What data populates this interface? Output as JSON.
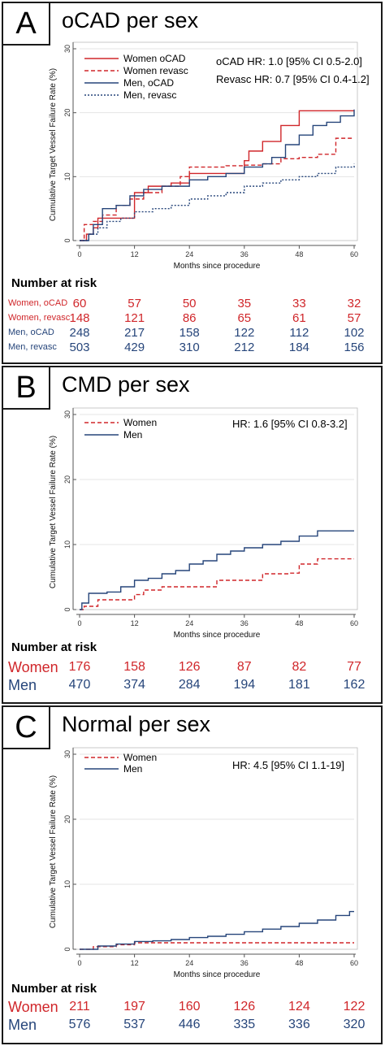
{
  "colors": {
    "women": "#d0262a",
    "men": "#26457a",
    "grid": "#e4e4e4",
    "axis": "#555555"
  },
  "chart_data": [
    {
      "type": "line",
      "panel": "A",
      "title": "oCAD per sex",
      "xlabel": "Months since procedure",
      "ylabel": "Cumulative Target Vessel Failure Rate (%)",
      "xlim": [
        0,
        60
      ],
      "ylim": [
        0,
        30
      ],
      "xticks": [
        "0",
        "12",
        "24",
        "36",
        "48",
        "60"
      ],
      "yticks": [
        "0",
        "10",
        "20",
        "30"
      ],
      "hr_lines": [
        "oCAD HR: 1.0 [95% CI 0.5-2.0]",
        "Revasc HR: 0.7 [95% CI 0.4-1.2]"
      ],
      "series": [
        {
          "name": "Women oCAD",
          "color": "#d0262a",
          "dash": "solid",
          "x": [
            0,
            1.5,
            3,
            4,
            6,
            10,
            12,
            15,
            20,
            24,
            30,
            36,
            37,
            40,
            44,
            48,
            60
          ],
          "y": [
            0,
            1,
            2,
            3.5,
            3.5,
            3.5,
            7.5,
            8.5,
            9,
            10.5,
            10.5,
            12.5,
            14,
            15.5,
            18,
            20.3,
            20.3
          ]
        },
        {
          "name": "Women revasc",
          "color": "#d0262a",
          "dash": "dash",
          "x": [
            0,
            1,
            3,
            5,
            8,
            11,
            14,
            18,
            22,
            24,
            28,
            32,
            36,
            40,
            44,
            48,
            52,
            56,
            60
          ],
          "y": [
            0,
            2.5,
            3,
            4,
            5.5,
            6.5,
            7.5,
            8.5,
            10,
            11.5,
            11.5,
            11.7,
            11.8,
            12,
            12.8,
            13,
            13.5,
            16,
            16
          ]
        },
        {
          "name": "Men, oCAD",
          "color": "#26457a",
          "dash": "solid",
          "x": [
            0,
            2,
            3,
            5,
            8,
            11,
            14,
            18,
            24,
            28,
            32,
            36,
            40,
            42,
            45,
            48,
            51,
            54,
            57,
            60
          ],
          "y": [
            0,
            1,
            2.5,
            5,
            5.5,
            7,
            8,
            8.5,
            9.5,
            10,
            10.5,
            11.5,
            12,
            13,
            15,
            16.5,
            18,
            18.5,
            19.5,
            20.5
          ]
        },
        {
          "name": "Men, revasc",
          "color": "#26457a",
          "dash": "dot",
          "x": [
            0,
            2,
            4,
            6,
            9,
            12,
            16,
            20,
            24,
            28,
            32,
            36,
            40,
            44,
            48,
            52,
            56,
            60
          ],
          "y": [
            0,
            1,
            2,
            3,
            3.5,
            4.5,
            5,
            5.5,
            6.5,
            7,
            7.5,
            8.5,
            9,
            9.5,
            10,
            10.5,
            11.5,
            12
          ]
        }
      ]
    },
    {
      "type": "line",
      "panel": "B",
      "title": "CMD per sex",
      "xlabel": "Months since procedure",
      "ylabel": "Cumulative Target Vessel Failure Rate (%)",
      "xlim": [
        0,
        60
      ],
      "ylim": [
        0,
        30
      ],
      "xticks": [
        "0",
        "12",
        "24",
        "36",
        "48",
        "60"
      ],
      "yticks": [
        "0",
        "10",
        "20",
        "30"
      ],
      "hr_lines": [
        "HR: 1.6 [95% CI 0.8-3.2]"
      ],
      "series": [
        {
          "name": "Women",
          "color": "#d0262a",
          "dash": "dash",
          "x": [
            0,
            1,
            4,
            12,
            14,
            18,
            24,
            30,
            36,
            40,
            44,
            46,
            48,
            52,
            60
          ],
          "y": [
            0,
            0.5,
            1.5,
            2.3,
            3,
            3.5,
            3.5,
            4.5,
            4.5,
            5.5,
            5.5,
            5.6,
            7,
            7.8,
            7.8
          ]
        },
        {
          "name": "Men",
          "color": "#26457a",
          "dash": "solid",
          "x": [
            0,
            0.5,
            2,
            6,
            9,
            12,
            15,
            18,
            21,
            24,
            27,
            30,
            33,
            36,
            40,
            44,
            48,
            52,
            60
          ],
          "y": [
            0,
            1,
            2.5,
            2.7,
            3.5,
            4.5,
            4.8,
            5.5,
            6,
            7,
            7.5,
            8.5,
            9,
            9.5,
            10,
            10.5,
            11.3,
            12.1,
            12.1
          ]
        }
      ]
    },
    {
      "type": "line",
      "panel": "C",
      "title": "Normal per sex",
      "xlabel": "Months since procedure",
      "ylabel": "Cumulative Target Vessel Failure Rate (%)",
      "xlim": [
        0,
        60
      ],
      "ylim": [
        0,
        30
      ],
      "xticks": [
        "0",
        "12",
        "24",
        "36",
        "48",
        "60"
      ],
      "yticks": [
        "0",
        "10",
        "20",
        "30"
      ],
      "hr_lines": [
        "HR: 4.5 [95% CI 1.1-19]"
      ],
      "series": [
        {
          "name": "Women",
          "color": "#d0262a",
          "dash": "dash",
          "x": [
            0,
            3,
            8,
            12,
            60
          ],
          "y": [
            0,
            0.4,
            0.7,
            1,
            1
          ]
        },
        {
          "name": "Men",
          "color": "#26457a",
          "dash": "solid",
          "x": [
            0,
            4,
            8,
            12,
            16,
            20,
            24,
            28,
            32,
            36,
            40,
            44,
            48,
            52,
            56,
            59,
            60
          ],
          "y": [
            0,
            0.5,
            0.8,
            1.2,
            1.3,
            1.5,
            1.8,
            2,
            2.3,
            2.7,
            3.1,
            3.5,
            4,
            4.5,
            5.2,
            5.8,
            5.8
          ]
        }
      ]
    }
  ],
  "risk_tables": [
    {
      "heading": "Number at risk",
      "rows": [
        {
          "label": "Women, oCAD",
          "color": "#d0262a",
          "values": [
            "60",
            "57",
            "50",
            "35",
            "33",
            "32"
          ]
        },
        {
          "label": "Women, revasc",
          "color": "#d0262a",
          "values": [
            "148",
            "121",
            "86",
            "65",
            "61",
            "57"
          ]
        },
        {
          "label": "Men, oCAD",
          "color": "#26457a",
          "values": [
            "248",
            "217",
            "158",
            "122",
            "112",
            "102"
          ]
        },
        {
          "label": "Men, revasc",
          "color": "#26457a",
          "values": [
            "503",
            "429",
            "310",
            "212",
            "184",
            "156"
          ]
        }
      ]
    },
    {
      "heading": "Number at risk",
      "rows": [
        {
          "label": "Women",
          "color": "#d0262a",
          "values": [
            "176",
            "158",
            "126",
            "87",
            "82",
            "77"
          ]
        },
        {
          "label": "Men",
          "color": "#26457a",
          "values": [
            "470",
            "374",
            "284",
            "194",
            "181",
            "162"
          ]
        }
      ]
    },
    {
      "heading": "Number at risk",
      "rows": [
        {
          "label": "Women",
          "color": "#d0262a",
          "values": [
            "211",
            "197",
            "160",
            "126",
            "124",
            "122"
          ]
        },
        {
          "label": "Men",
          "color": "#26457a",
          "values": [
            "576",
            "537",
            "446",
            "335",
            "336",
            "320"
          ]
        }
      ]
    }
  ]
}
